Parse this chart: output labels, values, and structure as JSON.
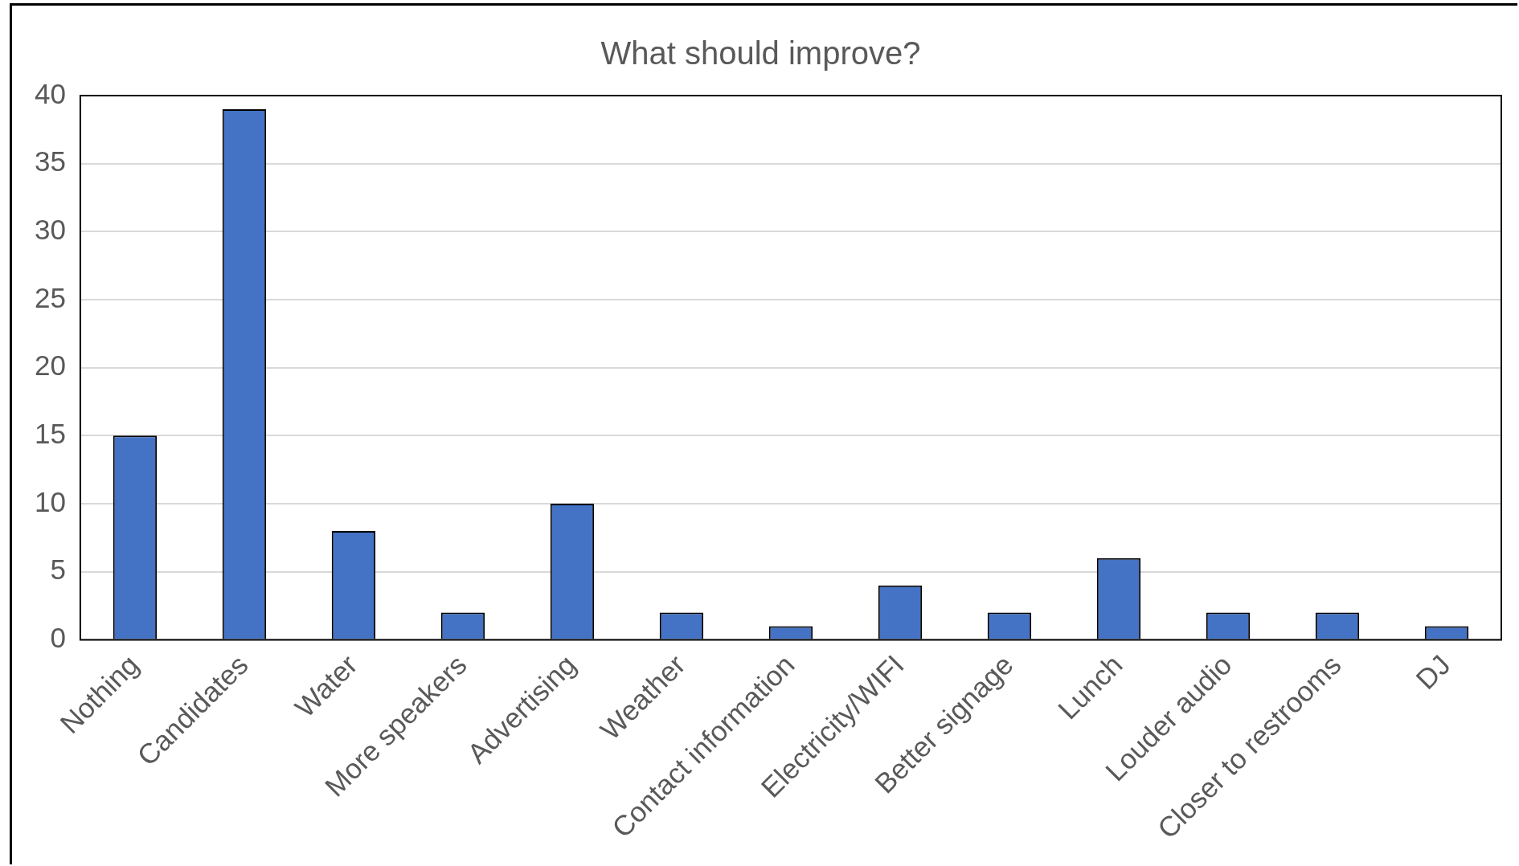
{
  "chart_data": {
    "type": "bar",
    "title": "What should improve?",
    "categories": [
      "Nothing",
      "Candidates",
      "Water",
      "More speakers",
      "Advertising",
      "Weather",
      "Contact information",
      "Electricity/WIFI",
      "Better signage",
      "Lunch",
      "Louder audio",
      "Closer to restrooms",
      "DJ"
    ],
    "values": [
      15,
      39,
      8,
      2,
      10,
      2,
      1,
      4,
      2,
      6,
      2,
      2,
      1
    ],
    "color": "#4472c4",
    "ylim": [
      0,
      40
    ],
    "yticks": [
      0,
      5,
      10,
      15,
      20,
      25,
      30,
      35,
      40
    ],
    "grid": "y"
  }
}
